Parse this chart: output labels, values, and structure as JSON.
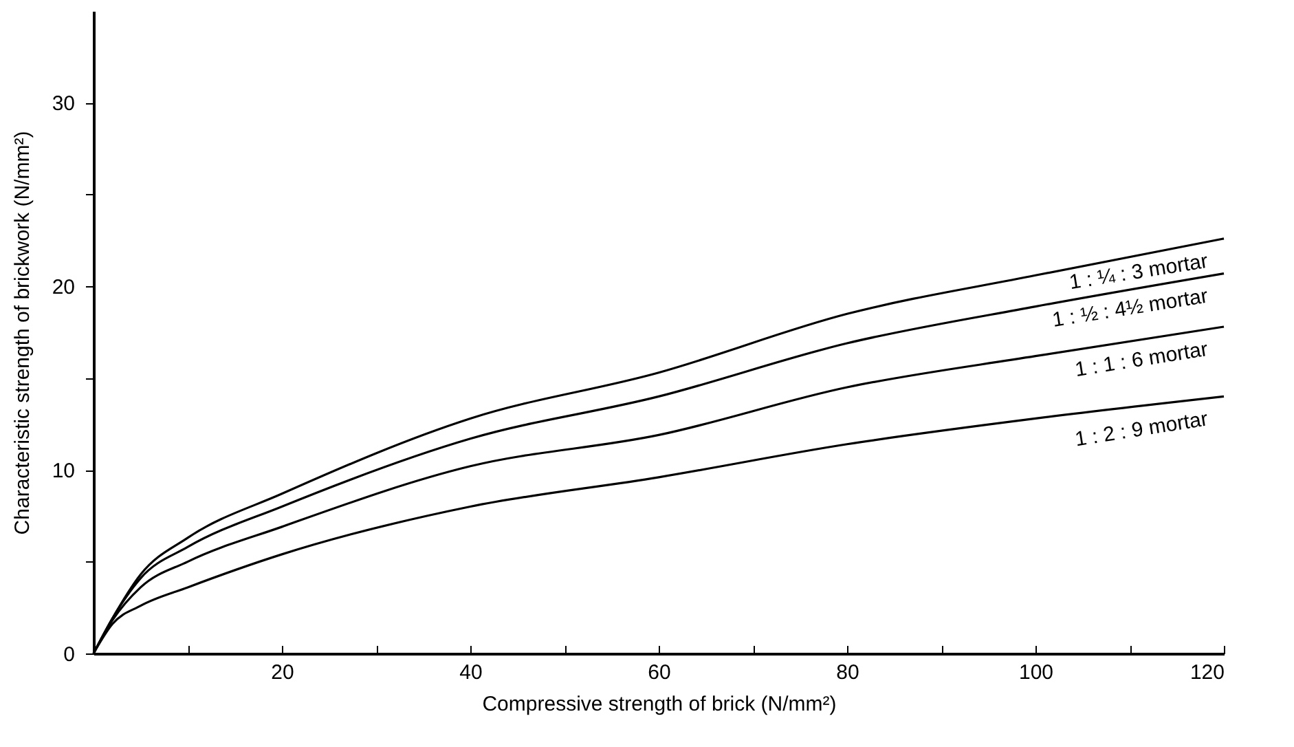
{
  "chart_data": {
    "type": "line",
    "xlabel": "Compressive strength of brick (N/mm²)",
    "ylabel": "Characteristic strength of brickwork (N/mm²)",
    "x": [
      0,
      2,
      5,
      10,
      20,
      40,
      60,
      80,
      100,
      120
    ],
    "series": [
      {
        "name": "1 : ¼ : 3 mortar",
        "color": "#000000",
        "values": [
          0,
          1.9,
          4.3,
          6.3,
          8.7,
          12.8,
          15.3,
          18.5,
          20.6,
          22.6
        ]
      },
      {
        "name": "1 : ½ : 4½ mortar",
        "color": "#000000",
        "values": [
          0,
          1.9,
          4.1,
          5.8,
          8.0,
          11.7,
          14.0,
          16.9,
          18.9,
          20.7
        ]
      },
      {
        "name": "1 : 1 : 6 mortar",
        "color": "#000000",
        "values": [
          0,
          1.8,
          3.6,
          5.0,
          6.9,
          10.2,
          11.9,
          14.5,
          16.2,
          17.8
        ]
      },
      {
        "name": "1 : 2 : 9 mortar",
        "color": "#000000",
        "values": [
          0,
          1.6,
          2.6,
          3.6,
          5.4,
          8.0,
          9.6,
          11.4,
          12.8,
          14.0
        ]
      }
    ],
    "xlim": [
      0,
      120
    ],
    "ylim": [
      0,
      35
    ],
    "xticks": [
      {
        "value": 10,
        "label": null
      },
      20,
      {
        "value": 30,
        "label": null
      },
      40,
      {
        "value": 50,
        "label": null
      },
      60,
      {
        "value": 70,
        "label": null
      },
      80,
      {
        "value": 90,
        "label": null
      },
      100,
      {
        "value": 110,
        "label": null
      },
      120
    ],
    "yticks": [
      0,
      {
        "value": 5,
        "label": null
      },
      10,
      {
        "value": 15,
        "label": null
      },
      20,
      {
        "value": 25,
        "label": null
      },
      30
    ],
    "grid": false,
    "legend": false,
    "marker": "none",
    "line_style": "solid"
  }
}
